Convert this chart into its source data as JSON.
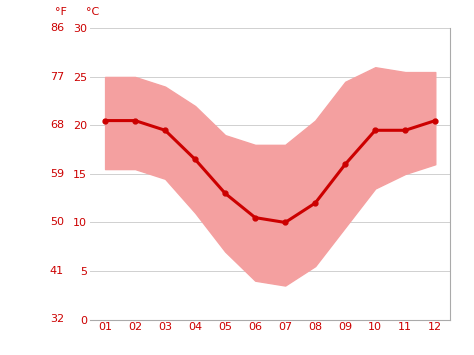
{
  "months": [
    1,
    2,
    3,
    4,
    5,
    6,
    7,
    8,
    9,
    10,
    11,
    12
  ],
  "month_labels": [
    "01",
    "02",
    "03",
    "04",
    "05",
    "06",
    "07",
    "08",
    "09",
    "10",
    "11",
    "12"
  ],
  "avg_temp_c": [
    20.5,
    20.5,
    19.5,
    16.5,
    13.0,
    10.5,
    10.0,
    12.0,
    16.0,
    19.5,
    19.5,
    20.5
  ],
  "max_temp_c": [
    25.0,
    25.0,
    24.0,
    22.0,
    19.0,
    18.0,
    18.0,
    20.5,
    24.5,
    26.0,
    25.5,
    25.5
  ],
  "min_temp_c": [
    15.5,
    15.5,
    14.5,
    11.0,
    7.0,
    4.0,
    3.5,
    5.5,
    9.5,
    13.5,
    15.0,
    16.0
  ],
  "ylim_c": [
    0,
    30
  ],
  "yticks_c": [
    0,
    5,
    10,
    15,
    20,
    25,
    30
  ],
  "yticks_f": [
    32,
    41,
    50,
    59,
    68,
    77,
    86
  ],
  "line_color": "#cc0000",
  "band_color": "#f4a0a0",
  "background_color": "#ffffff",
  "grid_color": "#d0d0d0",
  "tick_label_color": "#cc0000",
  "header_f": "°F",
  "header_c": "°C"
}
